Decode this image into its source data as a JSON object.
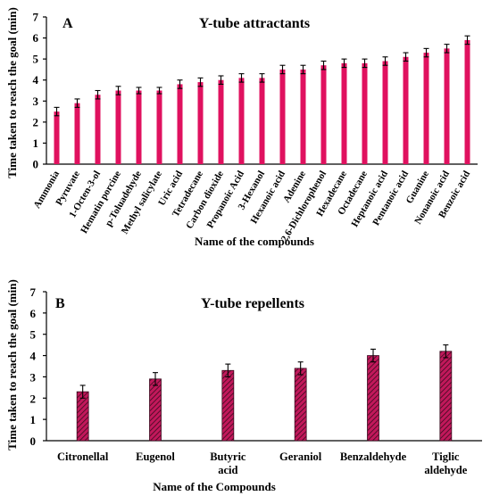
{
  "chart_data": [
    {
      "panel": "A",
      "type": "bar",
      "title": "Y-tube attractants",
      "ylabel": "Time taken to reach the goal (min)",
      "xlabel": "Name of the compounds",
      "ylim": [
        0,
        7
      ],
      "yticks": [
        0,
        1,
        2,
        3,
        4,
        5,
        6,
        7
      ],
      "color": "#e0115f",
      "categories": [
        "Ammonia",
        "Pyruvate",
        "1-Octen-3-ol",
        "Hematin porcine",
        "p-Toluadehyde",
        "Methyl salicylate",
        "Uric acid",
        "Tetradecane",
        "Carbon dioxide",
        "Propanoic Acid",
        "3-Hexanol",
        "Hexanoic acid",
        "Adenine",
        "2,6-Dichlorophenol",
        "Hexadecane",
        "Octadecane",
        "Heptanoic acid",
        "Pentanoic acid",
        "Guanine",
        "Nonanoic acid",
        "Benzoic acid"
      ],
      "values": [
        2.5,
        2.9,
        3.3,
        3.5,
        3.5,
        3.5,
        3.8,
        3.9,
        4.0,
        4.1,
        4.1,
        4.5,
        4.5,
        4.7,
        4.8,
        4.8,
        4.9,
        5.1,
        5.3,
        5.5,
        5.9
      ],
      "errors": [
        0.2,
        0.2,
        0.2,
        0.2,
        0.15,
        0.15,
        0.2,
        0.2,
        0.2,
        0.2,
        0.2,
        0.2,
        0.2,
        0.2,
        0.2,
        0.2,
        0.2,
        0.2,
        0.2,
        0.2,
        0.2
      ],
      "grid": false,
      "legend": "none"
    },
    {
      "panel": "B",
      "type": "bar",
      "title": "Y-tube repellents",
      "ylabel": "Time taken to reach the goal (min)",
      "xlabel": "Name of the Compounds",
      "ylim": [
        0,
        7
      ],
      "yticks": [
        0,
        1,
        2,
        3,
        4,
        5,
        6,
        7
      ],
      "color": "#c2185b",
      "pattern": "diagonal-hatch",
      "categories": [
        "Citronellal",
        "Eugenol",
        "Butyric acid",
        "Geraniol",
        "Benzaldehyde",
        "Tiglic aldehyde"
      ],
      "category_lines": [
        [
          "Citronellal"
        ],
        [
          "Eugenol"
        ],
        [
          "Butyric",
          "acid"
        ],
        [
          "Geraniol"
        ],
        [
          "Benzaldehyde"
        ],
        [
          "Tiglic",
          "aldehyde"
        ]
      ],
      "values": [
        2.3,
        2.9,
        3.3,
        3.4,
        4.0,
        4.2
      ],
      "errors": [
        0.3,
        0.3,
        0.3,
        0.3,
        0.3,
        0.3
      ],
      "grid": false,
      "legend": "none"
    }
  ]
}
